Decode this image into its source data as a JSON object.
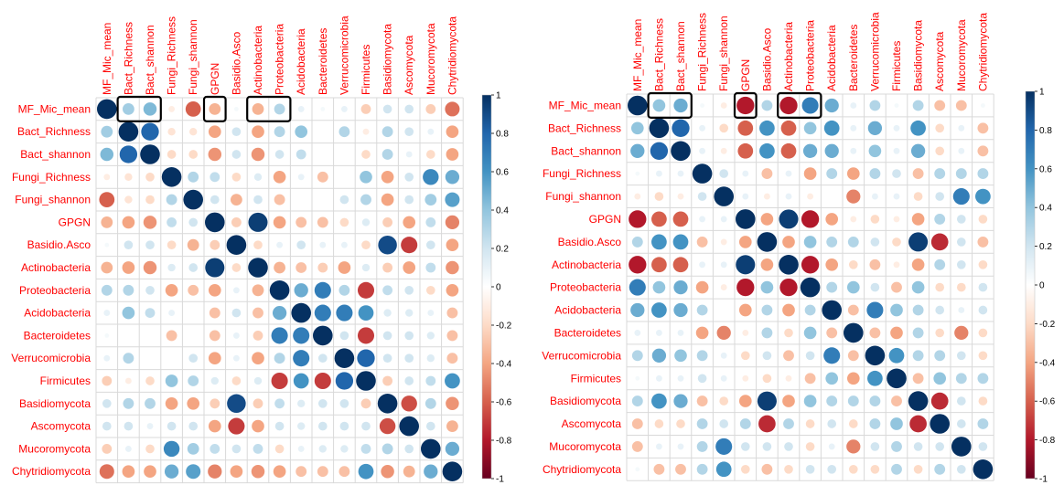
{
  "chart_data": [
    {
      "type": "heatmap",
      "variables": [
        "MF_Mic_mean",
        "Bact_Richness",
        "Bact_shannon",
        "Fungi_Richness",
        "Fungi_shannon",
        "GPGN",
        "Basidio.Asco",
        "Actinobacteria",
        "Proteobacteria",
        "Acidobacteria",
        "Bacteroidetes",
        "Verrucomicrobia",
        "Firmicutes",
        "Basidiomycota",
        "Ascomycota",
        "Mucoromycota",
        "Chytridiomycota"
      ],
      "row_labels": [
        "MF_Mic_mean",
        "Bact_Richness",
        "Bact_shannon",
        "Fungi_Richness",
        "Fungi_shannon",
        "GPGN",
        "Basidio.Asco",
        "Actinobacteria",
        "Proteobacteria",
        "Acidobacteria",
        "Bacteroidetes",
        "Verrucomicrobia",
        "Firmicutes",
        "Basidiomycota",
        "Ascomycota",
        "Mucoromycota",
        "Chytridiomycota"
      ],
      "matrix": [
        [
          1.0,
          0.35,
          0.45,
          -0.1,
          -0.6,
          -0.35,
          0.05,
          -0.35,
          0.3,
          0.1,
          0.05,
          0.1,
          -0.25,
          0.2,
          0.2,
          -0.25,
          -0.55
        ],
        [
          0.35,
          1.0,
          0.8,
          -0.15,
          -0.15,
          -0.4,
          0.2,
          -0.4,
          0.3,
          0.4,
          0.0,
          0.3,
          -0.1,
          0.3,
          0.2,
          0.1,
          -0.4
        ],
        [
          0.45,
          0.8,
          1.0,
          -0.2,
          -0.2,
          -0.45,
          0.2,
          -0.45,
          0.2,
          0.25,
          0.0,
          0.0,
          -0.2,
          0.3,
          0.1,
          -0.2,
          -0.4
        ],
        [
          -0.1,
          -0.15,
          -0.2,
          1.0,
          0.3,
          0.25,
          -0.2,
          0.15,
          -0.4,
          0.1,
          -0.3,
          0.0,
          0.4,
          -0.4,
          0.2,
          0.65,
          0.5
        ],
        [
          -0.6,
          -0.15,
          -0.2,
          0.3,
          1.0,
          0.2,
          -0.35,
          0.2,
          -0.3,
          0.0,
          0.0,
          0.2,
          0.3,
          -0.4,
          0.2,
          0.35,
          0.55
        ],
        [
          -0.35,
          -0.4,
          -0.45,
          0.25,
          0.2,
          1.0,
          -0.25,
          0.95,
          -0.4,
          -0.3,
          -0.3,
          -0.2,
          0.15,
          -0.25,
          -0.4,
          0.25,
          -0.5
        ],
        [
          0.05,
          0.2,
          0.2,
          -0.2,
          -0.35,
          -0.25,
          1.0,
          -0.2,
          0.1,
          0.2,
          0.1,
          0.1,
          -0.2,
          0.9,
          -0.7,
          0.2,
          -0.4
        ],
        [
          -0.35,
          -0.4,
          -0.45,
          0.15,
          0.2,
          0.95,
          -0.2,
          1.0,
          -0.35,
          -0.3,
          -0.25,
          -0.4,
          0.15,
          -0.25,
          -0.4,
          0.25,
          -0.45
        ],
        [
          0.3,
          0.3,
          0.2,
          -0.4,
          -0.3,
          -0.4,
          0.1,
          -0.35,
          1.0,
          0.5,
          0.7,
          0.3,
          -0.7,
          0.25,
          0.2,
          -0.2,
          -0.4
        ],
        [
          0.1,
          0.4,
          0.25,
          0.1,
          0.0,
          -0.3,
          0.2,
          -0.3,
          0.5,
          1.0,
          0.7,
          0.7,
          0.6,
          0.15,
          0.15,
          0.1,
          -0.3
        ],
        [
          0.05,
          0.0,
          0.0,
          -0.3,
          0.0,
          -0.3,
          0.1,
          -0.25,
          0.7,
          0.7,
          1.0,
          0.2,
          -0.7,
          0.2,
          0.2,
          0.15,
          -0.3
        ],
        [
          0.1,
          0.3,
          0.0,
          0.0,
          0.2,
          -0.4,
          0.1,
          -0.4,
          0.3,
          0.7,
          0.2,
          1.0,
          0.8,
          0.2,
          0.2,
          0.15,
          -0.3
        ],
        [
          -0.25,
          -0.1,
          -0.2,
          0.4,
          0.3,
          0.15,
          -0.2,
          0.15,
          -0.7,
          0.6,
          -0.7,
          0.8,
          1.0,
          -0.25,
          0.2,
          0.25,
          0.6
        ],
        [
          0.2,
          0.3,
          0.3,
          -0.4,
          -0.4,
          -0.25,
          0.9,
          -0.25,
          0.25,
          0.15,
          0.2,
          0.2,
          -0.25,
          1.0,
          -0.65,
          0.3,
          -0.45
        ],
        [
          0.2,
          0.2,
          0.1,
          0.2,
          0.2,
          -0.4,
          -0.7,
          -0.4,
          0.2,
          0.15,
          0.2,
          0.2,
          0.2,
          -0.65,
          1.0,
          0.2,
          -0.35
        ],
        [
          -0.25,
          0.1,
          -0.2,
          0.65,
          0.35,
          0.25,
          0.2,
          0.25,
          -0.2,
          0.1,
          0.15,
          0.15,
          0.25,
          0.3,
          0.2,
          1.0,
          0.5
        ],
        [
          -0.55,
          -0.4,
          -0.4,
          0.5,
          0.55,
          -0.5,
          -0.4,
          -0.45,
          -0.4,
          -0.3,
          -0.3,
          -0.3,
          0.6,
          -0.45,
          -0.35,
          0.5,
          1.0
        ]
      ],
      "highlighted_columns": [
        "Bact_Richness",
        "Bact_shannon",
        "GPGN",
        "Actinobacteria",
        "Proteobacteria"
      ],
      "highlight_row": "MF_Mic_mean",
      "color_scale": {
        "min": -1,
        "max": 1,
        "ticks": [
          "1",
          "0.8",
          "0.6",
          "0.4",
          "0.2",
          "0",
          "-0.2",
          "-0.4",
          "-0.6",
          "-0.8",
          "-1"
        ]
      },
      "colors": {
        "positive": "#053061",
        "neutral": "#ffffff",
        "negative": "#67001f",
        "labels": "#ff0000"
      }
    },
    {
      "type": "heatmap",
      "variables": [
        "MF_Mic_mean",
        "Bact_Richness",
        "Bact_shannon",
        "Fungi_Richness",
        "Fungi_shannon",
        "GPGN",
        "Basidio.Asco",
        "Actinobacteria",
        "Proteobacteria",
        "Acidobacteria",
        "Bacteroidetes",
        "Verrucomicrobia",
        "Firmicutes",
        "Basidiomycota",
        "Ascomycota",
        "Mucoromycota",
        "Chytridiomycota"
      ],
      "row_labels": [
        "MF_Mic_mean",
        "Bact_Richness",
        "Bact_shannon",
        "Fungi_Richness",
        "Fungi_shannon",
        "GPGN",
        "Basidio.Asco",
        "Actinobacteria",
        "Proteobacteria",
        "Acidobacteria",
        "Bacteroidetes",
        "Verrucomicrobia",
        "Firmicutes",
        "Basidiomycota",
        "Ascomycota",
        "Mucoromycota",
        "Chytridiomycota"
      ],
      "matrix": [
        [
          1.0,
          0.4,
          0.5,
          0.05,
          -0.1,
          -0.8,
          0.3,
          -0.8,
          0.7,
          0.5,
          0.1,
          0.3,
          0.05,
          0.3,
          -0.3,
          -0.3,
          0.05
        ],
        [
          0.4,
          1.0,
          0.8,
          0.1,
          -0.2,
          -0.6,
          0.6,
          -0.6,
          0.4,
          0.6,
          0.1,
          0.5,
          0.1,
          0.6,
          -0.2,
          0.1,
          -0.3
        ],
        [
          0.5,
          0.8,
          1.0,
          0.1,
          -0.1,
          -0.6,
          0.6,
          -0.6,
          0.5,
          0.5,
          0.1,
          0.4,
          0.1,
          0.5,
          -0.2,
          0.1,
          -0.3
        ],
        [
          0.05,
          0.1,
          0.1,
          1.0,
          0.2,
          0.1,
          -0.3,
          0.1,
          -0.4,
          0.3,
          -0.4,
          0.3,
          0.2,
          -0.3,
          0.3,
          0.3,
          0.3
        ],
        [
          -0.1,
          -0.2,
          -0.1,
          0.2,
          1.0,
          0.1,
          -0.1,
          0.1,
          -0.1,
          0.0,
          -0.5,
          0.1,
          0.1,
          -0.2,
          0.2,
          0.7,
          0.6
        ],
        [
          -0.8,
          -0.6,
          -0.6,
          0.1,
          0.1,
          1.0,
          -0.4,
          0.95,
          -0.8,
          -0.4,
          -0.1,
          -0.2,
          -0.1,
          -0.4,
          0.3,
          0.2,
          -0.2
        ],
        [
          0.3,
          0.6,
          0.6,
          -0.3,
          -0.1,
          -0.4,
          1.0,
          -0.4,
          0.4,
          0.3,
          0.3,
          0.2,
          -0.2,
          0.95,
          -0.75,
          0.2,
          -0.3
        ],
        [
          -0.8,
          -0.6,
          -0.6,
          0.1,
          0.1,
          0.95,
          -0.4,
          1.0,
          -0.8,
          -0.4,
          -0.2,
          -0.3,
          -0.1,
          -0.4,
          0.3,
          0.2,
          -0.2
        ],
        [
          0.7,
          0.4,
          0.5,
          -0.4,
          -0.1,
          -0.8,
          0.4,
          -0.8,
          1.0,
          0.3,
          0.4,
          0.2,
          -0.3,
          0.4,
          -0.2,
          -0.2,
          0.2
        ],
        [
          0.5,
          0.6,
          0.5,
          0.3,
          0.0,
          -0.4,
          0.3,
          -0.4,
          0.3,
          1.0,
          -0.3,
          0.7,
          0.4,
          0.3,
          0.2,
          0.1,
          0.2
        ],
        [
          0.1,
          0.1,
          0.1,
          -0.4,
          -0.5,
          -0.1,
          0.3,
          -0.2,
          0.4,
          -0.3,
          1.0,
          -0.3,
          -0.4,
          0.3,
          -0.2,
          -0.5,
          -0.2
        ],
        [
          0.3,
          0.5,
          0.4,
          0.3,
          0.1,
          -0.2,
          0.2,
          -0.3,
          0.2,
          0.7,
          -0.3,
          1.0,
          0.6,
          0.3,
          0.3,
          0.2,
          -0.2
        ],
        [
          0.05,
          0.1,
          0.1,
          0.2,
          0.1,
          -0.1,
          -0.2,
          -0.1,
          -0.3,
          0.4,
          -0.4,
          0.6,
          1.0,
          -0.3,
          0.4,
          0.3,
          0.3
        ],
        [
          0.3,
          0.6,
          0.5,
          -0.3,
          -0.2,
          -0.4,
          0.95,
          -0.4,
          0.4,
          0.3,
          0.3,
          0.3,
          -0.3,
          1.0,
          -0.75,
          0.2,
          -0.2
        ],
        [
          -0.3,
          -0.2,
          -0.2,
          0.3,
          0.2,
          0.3,
          -0.75,
          0.3,
          -0.2,
          0.2,
          -0.2,
          0.3,
          0.4,
          -0.75,
          1.0,
          0.2,
          0.3
        ],
        [
          -0.3,
          0.1,
          0.1,
          0.3,
          0.7,
          0.2,
          0.2,
          0.2,
          -0.2,
          0.1,
          -0.5,
          0.2,
          0.3,
          0.2,
          0.2,
          1.0,
          0.2
        ],
        [
          0.05,
          -0.3,
          -0.3,
          0.3,
          0.6,
          -0.2,
          -0.3,
          -0.2,
          0.2,
          0.2,
          -0.2,
          -0.2,
          0.3,
          -0.2,
          0.3,
          0.2,
          1.0
        ]
      ],
      "highlighted_columns": [
        "Bact_Richness",
        "Bact_shannon",
        "GPGN",
        "Actinobacteria",
        "Proteobacteria"
      ],
      "highlight_row": "MF_Mic_mean",
      "color_scale": {
        "min": -1,
        "max": 1,
        "ticks": [
          "1",
          "0.8",
          "0.6",
          "0.4",
          "0.2",
          "0",
          "-0.2",
          "-0.4",
          "-0.6",
          "-0.8",
          "-1"
        ]
      },
      "colors": {
        "positive": "#053061",
        "neutral": "#ffffff",
        "negative": "#67001f",
        "labels": "#ff0000"
      }
    }
  ]
}
